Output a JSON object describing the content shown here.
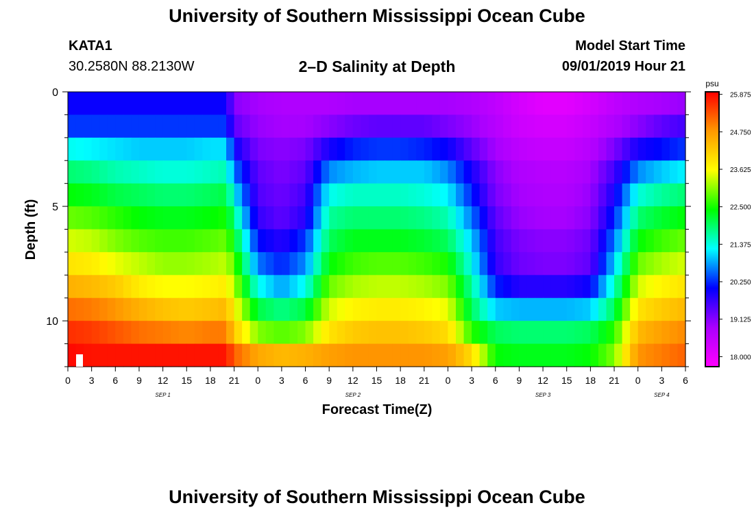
{
  "page": {
    "title_top": "University of Southern Mississippi Ocean Cube",
    "title_bottom": "University of Southern Mississippi Ocean Cube",
    "station_id": "KATA1",
    "station_coords": "30.2580N 88.2130W",
    "chart_title": "2–D Salinity at Depth",
    "model_start_label": "Model Start Time",
    "model_start_value": "09/01/2019 Hour 21"
  },
  "colors": {
    "scale": [
      "#ff00ff",
      "#aa00ff",
      "#0000ff",
      "#00ffff",
      "#00ff00",
      "#ffff00",
      "#ff9900",
      "#ff0000"
    ]
  },
  "chart_data": {
    "type": "heatmap",
    "title": "2–D Salinity at Depth",
    "xlabel": "Forecast Time(Z)",
    "ylabel": "Depth (ft)",
    "x_tick_labels": [
      "0",
      "3",
      "6",
      "9",
      "12",
      "15",
      "18",
      "21",
      "0",
      "3",
      "6",
      "9",
      "12",
      "15",
      "18",
      "21",
      "0",
      "3",
      "6",
      "9",
      "12",
      "15",
      "18",
      "21",
      "0",
      "3",
      "6"
    ],
    "date_labels": [
      {
        "label": "SEP 1",
        "tick_index": 4
      },
      {
        "label": "SEP 2",
        "tick_index": 12
      },
      {
        "label": "SEP 3",
        "tick_index": 20
      },
      {
        "label": "SEP 4",
        "tick_index": 25
      }
    ],
    "x_range_hours": [
      0,
      78
    ],
    "y_tick_labels": [
      "0",
      "5",
      "10"
    ],
    "y_range_ft": [
      0,
      12
    ],
    "depth_levels": 12,
    "colorbar": {
      "unit": "psu",
      "labels": [
        "25.875",
        "24.750",
        "23.625",
        "22.500",
        "21.375",
        "20.250",
        "19.125",
        "18.000"
      ],
      "range": [
        17.7,
        25.95
      ]
    },
    "hours": [
      0,
      3,
      6,
      9,
      12,
      15,
      18,
      20,
      21,
      24,
      27,
      30,
      33,
      36,
      39,
      42,
      45,
      48,
      51,
      54,
      57,
      60,
      63,
      66,
      69,
      72,
      75,
      78
    ],
    "salinity": [
      [
        20.0,
        20.0,
        20.0,
        20.0,
        20.0,
        20.0,
        20.0,
        20.0,
        19.1,
        18.9,
        18.8,
        18.8,
        18.8,
        18.9,
        18.9,
        18.9,
        18.9,
        18.9,
        18.8,
        18.6,
        18.3,
        18.1,
        18.1,
        18.3,
        18.6,
        18.8,
        18.9,
        19.0
      ],
      [
        20.3,
        20.3,
        20.3,
        20.3,
        20.3,
        20.3,
        20.3,
        20.3,
        19.4,
        19.0,
        18.9,
        18.9,
        19.1,
        19.3,
        19.4,
        19.4,
        19.4,
        19.2,
        19.0,
        18.7,
        18.4,
        18.3,
        18.3,
        18.5,
        18.8,
        19.1,
        19.4,
        19.6
      ],
      [
        21.3,
        21.2,
        21.1,
        21.0,
        21.0,
        21.0,
        21.1,
        21.1,
        20.0,
        19.2,
        19.1,
        19.2,
        19.9,
        20.2,
        20.3,
        20.3,
        20.2,
        20.0,
        19.4,
        18.9,
        18.6,
        18.5,
        18.5,
        18.7,
        19.2,
        19.9,
        20.1,
        20.3
      ],
      [
        21.9,
        21.8,
        21.6,
        21.5,
        21.4,
        21.4,
        21.5,
        21.6,
        20.6,
        19.4,
        19.2,
        19.4,
        20.7,
        20.9,
        21.0,
        21.0,
        21.0,
        20.7,
        19.9,
        19.1,
        18.8,
        18.7,
        18.7,
        18.9,
        19.6,
        20.7,
        21.0,
        21.2
      ],
      [
        22.4,
        22.3,
        22.1,
        22.0,
        21.9,
        21.9,
        22.0,
        22.1,
        21.2,
        19.5,
        19.3,
        19.6,
        21.3,
        21.5,
        21.5,
        21.5,
        21.4,
        21.2,
        20.2,
        19.2,
        18.9,
        18.8,
        18.8,
        19.0,
        19.9,
        21.4,
        21.7,
        21.9
      ],
      [
        22.9,
        22.8,
        22.6,
        22.4,
        22.3,
        22.3,
        22.4,
        22.5,
        21.8,
        19.7,
        19.4,
        19.8,
        21.7,
        21.9,
        21.9,
        21.9,
        21.8,
        21.6,
        20.6,
        19.4,
        19.0,
        18.9,
        18.9,
        19.1,
        20.2,
        21.9,
        22.2,
        22.4
      ],
      [
        23.4,
        23.3,
        23.0,
        22.8,
        22.7,
        22.7,
        22.8,
        22.9,
        22.3,
        20.1,
        19.8,
        20.3,
        22.0,
        22.3,
        22.3,
        22.3,
        22.2,
        22.0,
        21.0,
        19.6,
        19.2,
        19.1,
        19.1,
        19.3,
        20.6,
        22.4,
        22.7,
        22.9
      ],
      [
        23.9,
        23.8,
        23.5,
        23.3,
        23.1,
        23.1,
        23.2,
        23.3,
        22.8,
        20.6,
        20.2,
        20.7,
        22.4,
        22.7,
        22.8,
        22.8,
        22.7,
        22.5,
        21.3,
        19.7,
        19.3,
        19.2,
        19.2,
        19.4,
        21.0,
        22.9,
        23.2,
        23.4
      ],
      [
        24.5,
        24.4,
        24.2,
        23.8,
        23.6,
        23.6,
        23.7,
        23.8,
        23.2,
        21.3,
        20.8,
        21.3,
        22.9,
        23.2,
        23.3,
        23.3,
        23.2,
        23.0,
        21.7,
        20.2,
        19.8,
        19.8,
        19.8,
        20.0,
        21.5,
        23.4,
        23.7,
        23.9
      ],
      [
        25.1,
        25.0,
        24.8,
        24.5,
        24.3,
        24.2,
        24.3,
        24.4,
        23.7,
        22.1,
        21.8,
        22.1,
        23.4,
        23.7,
        23.8,
        23.8,
        23.7,
        23.5,
        22.0,
        21.0,
        20.9,
        20.9,
        20.9,
        21.0,
        22.0,
        23.9,
        24.2,
        24.4
      ],
      [
        25.6,
        25.5,
        25.3,
        25.1,
        25.0,
        24.9,
        25.0,
        25.0,
        24.2,
        23.0,
        22.8,
        23.0,
        23.9,
        24.2,
        24.3,
        24.3,
        24.2,
        24.0,
        22.6,
        22.0,
        21.9,
        21.9,
        21.9,
        22.0,
        22.6,
        24.4,
        24.7,
        24.9
      ],
      [
        25.9,
        25.8,
        25.8,
        25.8,
        25.8,
        25.8,
        25.8,
        25.8,
        25.2,
        24.6,
        24.4,
        24.5,
        24.7,
        24.8,
        24.8,
        24.8,
        24.8,
        24.7,
        24.0,
        22.4,
        22.3,
        22.3,
        22.3,
        22.4,
        23.0,
        24.8,
        25.0,
        25.2
      ]
    ]
  }
}
